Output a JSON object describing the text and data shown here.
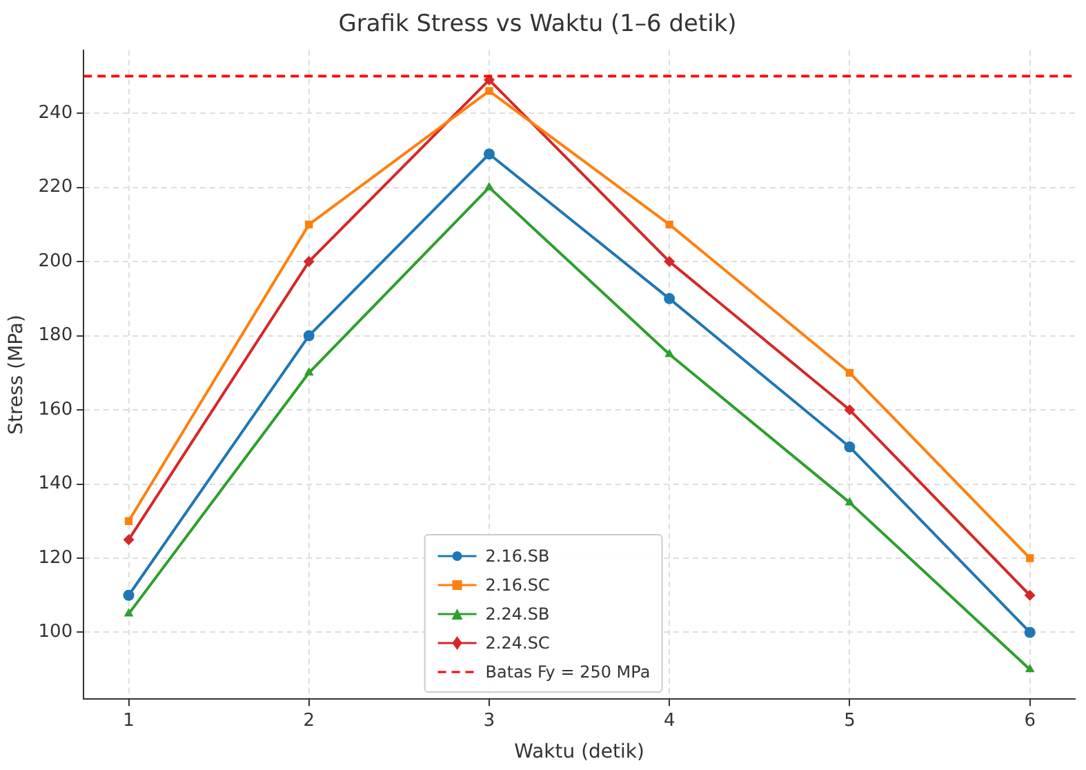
{
  "chart_data": {
    "type": "line",
    "title": "Grafik Stress vs Waktu (1–6 detik)",
    "xlabel": "Waktu (detik)",
    "ylabel": "Stress (MPa)",
    "x": [
      1,
      2,
      3,
      4,
      5,
      6
    ],
    "series": [
      {
        "name": "2.16.SB",
        "color": "#1f77b4",
        "marker": "circle",
        "values": [
          110,
          180,
          229,
          190,
          150,
          100
        ]
      },
      {
        "name": "2.16.SC",
        "color": "#ff7f0e",
        "marker": "square",
        "values": [
          130,
          210,
          246,
          210,
          170,
          120
        ]
      },
      {
        "name": "2.24.SB",
        "color": "#2ca02c",
        "marker": "triangle",
        "values": [
          105,
          170,
          220,
          175,
          135,
          90
        ]
      },
      {
        "name": "2.24.SC",
        "color": "#d62728",
        "marker": "diamond",
        "values": [
          125,
          200,
          249,
          200,
          160,
          110
        ]
      }
    ],
    "ref_lines": [
      {
        "axis": "y",
        "value": 250,
        "label": "Batas Fy = 250 MPa",
        "color": "#ff0000",
        "line_style": "dashed"
      }
    ],
    "xlim": [
      0.75,
      6.25
    ],
    "xticks": [
      1,
      2,
      3,
      4,
      5,
      6
    ],
    "ylim": [
      82,
      257
    ],
    "yticks": [
      100,
      120,
      140,
      160,
      180,
      200,
      220,
      240
    ],
    "grid": true,
    "legend": "bottom",
    "line_style": "solid"
  }
}
